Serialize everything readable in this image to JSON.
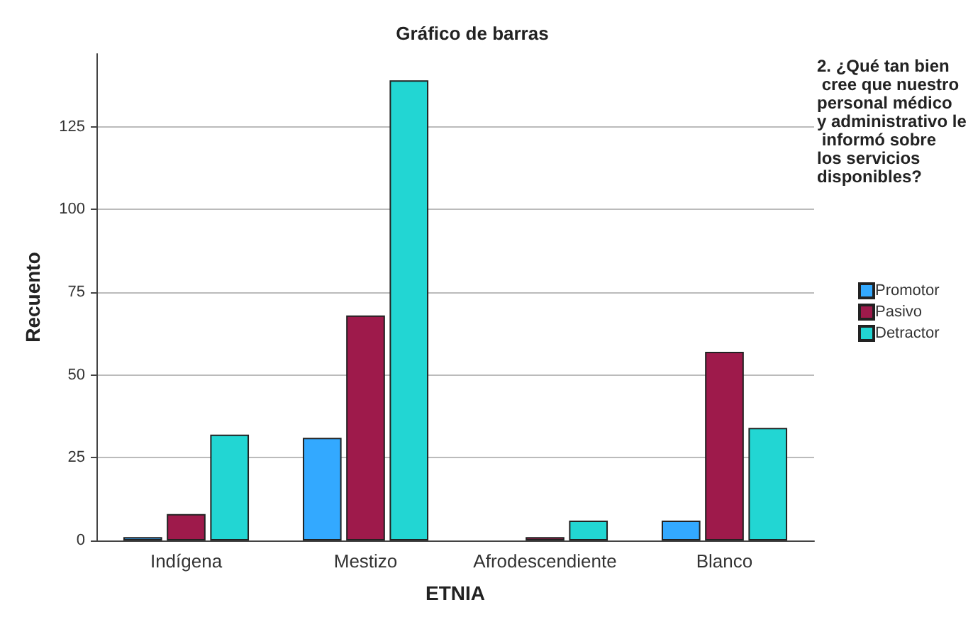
{
  "chart_data": {
    "type": "bar",
    "title": "Gráfico de barras",
    "xlabel": "ETNIA",
    "ylabel": "Recuento",
    "legend_title": "2. ¿Qué tan bien cree que nuestro personal médico y administrativo le informó sobre los servicios disponibles?",
    "categories": [
      "Indígena",
      "Mestizo",
      "Afrodescendiente",
      "Blanco"
    ],
    "series": [
      {
        "name": "Promotor",
        "color": "#33a9ff",
        "values": [
          1,
          31,
          0,
          6
        ]
      },
      {
        "name": "Pasivo",
        "color": "#9e1a4b",
        "values": [
          8,
          68,
          1,
          57
        ]
      },
      {
        "name": "Detractor",
        "color": "#22d6d3",
        "values": [
          32,
          139,
          6,
          34
        ]
      }
    ],
    "ylim": [
      0,
      147
    ],
    "yticks": [
      0,
      25,
      50,
      75,
      100,
      125
    ],
    "grid": "y",
    "legend": "right"
  }
}
